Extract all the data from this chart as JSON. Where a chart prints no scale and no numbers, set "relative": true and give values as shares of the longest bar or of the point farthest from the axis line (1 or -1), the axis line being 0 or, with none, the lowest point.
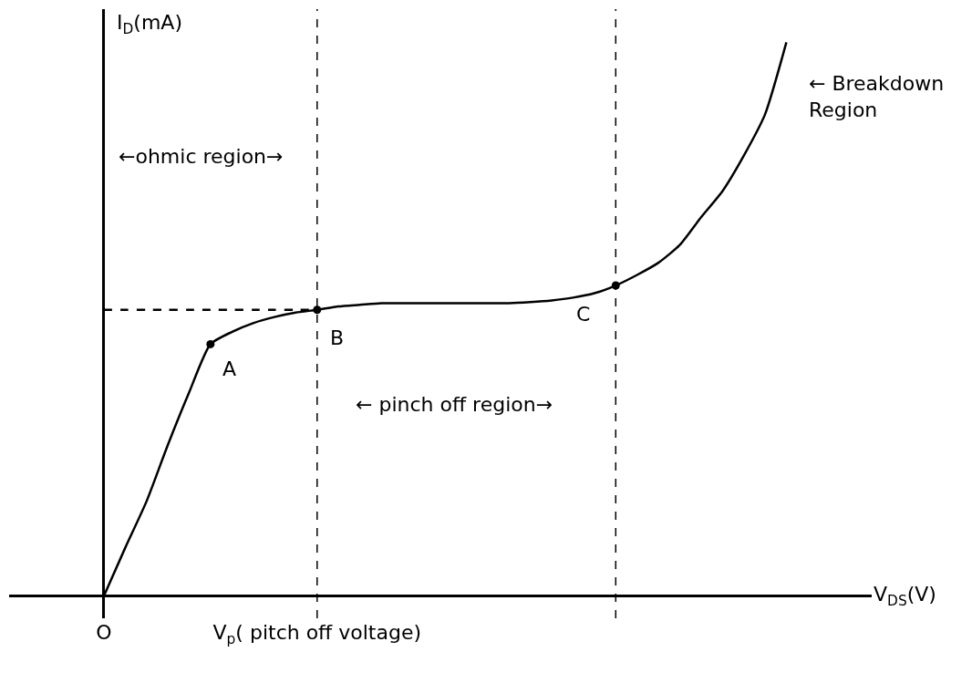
{
  "chart_data": {
    "type": "line",
    "relative": true,
    "xlabel": "V$_{DS}$(V)",
    "ylabel": "I$_{D}$(mA)",
    "categories": [
      "O",
      null,
      null,
      null,
      null,
      null,
      null,
      null,
      null,
      null,
      "V$_{p}$( pitch off voltage)",
      null,
      null,
      null,
      null,
      null,
      null,
      null,
      null,
      null,
      null,
      null,
      null,
      null,
      null,
      null,
      null,
      null,
      null,
      null,
      null,
      null,
      null,
      null,
      null,
      null,
      null
    ],
    "series": [
      {
        "color": "#000000",
        "values": [
          0,
          0.087,
          0.171,
          0.273,
          0.368,
          0.455,
          0.477,
          0.493,
          0.504,
          0.512,
          0.517,
          0.523,
          0.526,
          0.529,
          0.529,
          0.529,
          0.529,
          0.529,
          0.529,
          0.529,
          0.531,
          0.534,
          0.539,
          0.547,
          0.561,
          0.58,
          0.602,
          0.634,
          0.684,
          0.731,
          0.795,
          0.87,
          1.0,
          null,
          null,
          null,
          null
        ]
      },
      {
        "type": "scatter",
        "color": "#000000",
        "marker": "circle",
        "values": [
          null,
          null,
          null,
          null,
          null,
          0.455,
          null,
          null,
          null,
          null,
          0.517,
          null,
          null,
          null,
          null,
          null,
          null,
          null,
          null,
          null,
          null,
          null,
          null,
          null,
          0.561,
          null,
          null,
          null,
          null,
          null,
          null,
          null,
          null,
          null,
          null,
          null,
          null
        ]
      },
      {
        "color": "#000000",
        "line_style": "dashed",
        "values": [
          0.517,
          0.517,
          0.517,
          0.517,
          0.517,
          0.517,
          0.517,
          0.517,
          0.517,
          0.517,
          0.517,
          null,
          null,
          null,
          null,
          null,
          null,
          null,
          null,
          null,
          null,
          null,
          null,
          null,
          null,
          null,
          null,
          null,
          null,
          null,
          null,
          null,
          null,
          null,
          null,
          null,
          null
        ]
      }
    ],
    "ref_lines": [
      {
        "axis": "x",
        "value": "V$_{p}$( pitch off voltage)",
        "line_style": "dashed",
        "color": "#000000"
      }
    ],
    "annotations": [
      "A",
      "B",
      "C",
      "←ohmic region→",
      "← Breakdown Region",
      "← pinch off region→"
    ],
    "tick_labels": "x"
  }
}
